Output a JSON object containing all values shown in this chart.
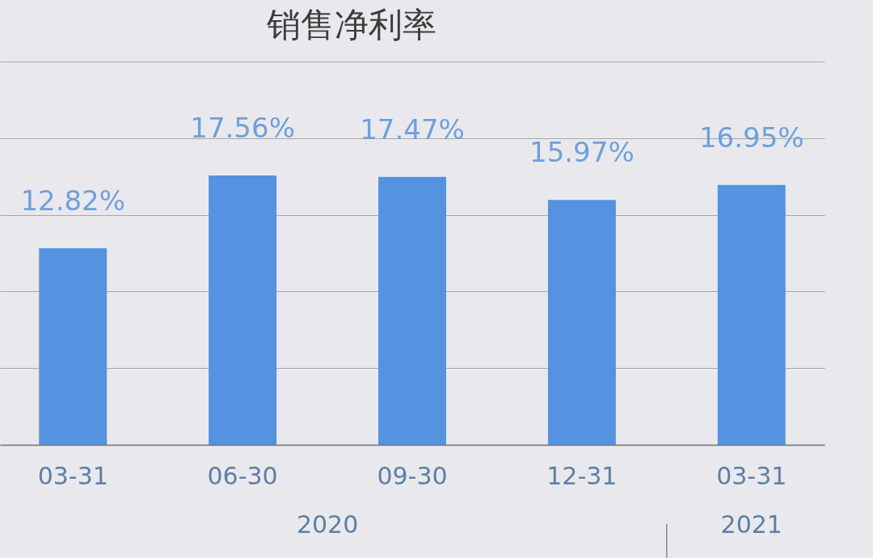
{
  "chart_data": {
    "type": "bar",
    "title": "销售净利率",
    "categories": [
      "03-31",
      "06-30",
      "09-30",
      "12-31",
      "03-31"
    ],
    "values": [
      12.82,
      17.56,
      17.47,
      15.97,
      16.95
    ],
    "color": "#5592e0",
    "value_labels": [
      "12.82%",
      "17.56%",
      "17.47%",
      "15.97%",
      "16.95%"
    ],
    "ylim": [
      0,
      25
    ],
    "yticks": [
      {
        "value": 0,
        "label": null
      },
      {
        "value": 5,
        "label": null
      },
      {
        "value": 10,
        "label": null
      },
      {
        "value": 15,
        "label": null
      },
      {
        "value": 20,
        "label": null
      },
      {
        "value": 25,
        "label": null
      }
    ],
    "grid": "y",
    "tick_labels": "x",
    "annotations": [
      "2020",
      "2021"
    ]
  }
}
